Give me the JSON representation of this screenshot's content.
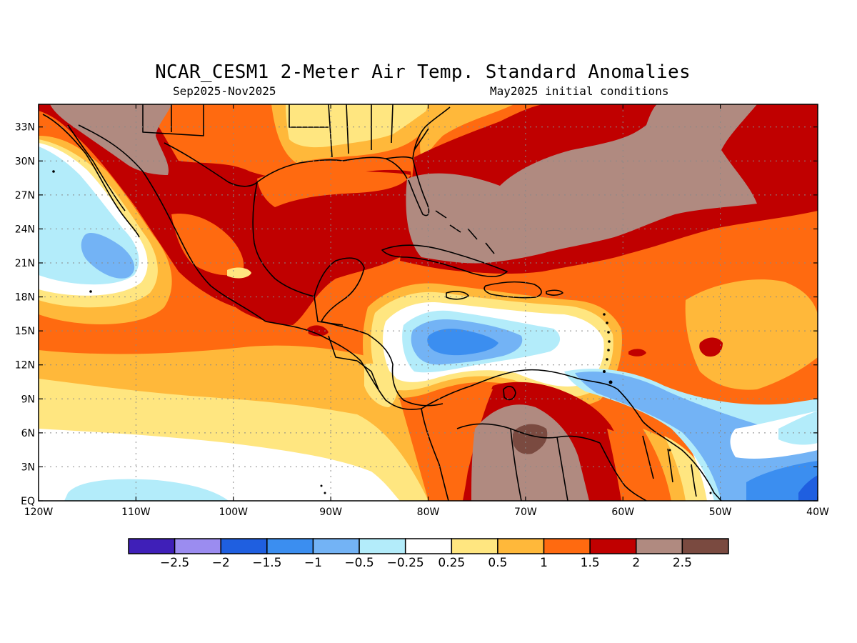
{
  "header": {
    "title": "NCAR_CESM1 2-Meter Air Temp. Standard Anomalies",
    "period": "Sep2025-Nov2025",
    "init": "May2025 initial conditions"
  },
  "map": {
    "lon_range": [
      -120,
      -40
    ],
    "lat_range": [
      0,
      35
    ],
    "lat_ticks": [
      {
        "value": 33,
        "label": "33N"
      },
      {
        "value": 30,
        "label": "30N"
      },
      {
        "value": 27,
        "label": "27N"
      },
      {
        "value": 24,
        "label": "24N"
      },
      {
        "value": 21,
        "label": "21N"
      },
      {
        "value": 18,
        "label": "18N"
      },
      {
        "value": 15,
        "label": "15N"
      },
      {
        "value": 12,
        "label": "12N"
      },
      {
        "value": 9,
        "label": "9N"
      },
      {
        "value": 6,
        "label": "6N"
      },
      {
        "value": 3,
        "label": "3N"
      },
      {
        "value": 0,
        "label": "EQ"
      }
    ],
    "lon_ticks": [
      {
        "value": -120,
        "label": "120W"
      },
      {
        "value": -110,
        "label": "110W"
      },
      {
        "value": -100,
        "label": "100W"
      },
      {
        "value": -90,
        "label": "90W"
      },
      {
        "value": -80,
        "label": "80W"
      },
      {
        "value": -70,
        "label": "70W"
      },
      {
        "value": -60,
        "label": "60W"
      },
      {
        "value": -50,
        "label": "50W"
      },
      {
        "value": -40,
        "label": "40W"
      }
    ],
    "grid": "dotted"
  },
  "colorbar": {
    "colors": [
      "#3f1fb8",
      "#9b8cf0",
      "#1f5fe0",
      "#3b8ef0",
      "#73b3f5",
      "#b3ecfa",
      "#ffffff",
      "#ffe680",
      "#ffb83a",
      "#ff6a10",
      "#c00000",
      "#b08a80",
      "#7a4a40"
    ],
    "labels": [
      "-2.5",
      "-2",
      "-1.5",
      "-1",
      "-0.5",
      "-0.25",
      "0.25",
      "0.5",
      "1",
      "1.5",
      "2",
      "2.5"
    ]
  }
}
